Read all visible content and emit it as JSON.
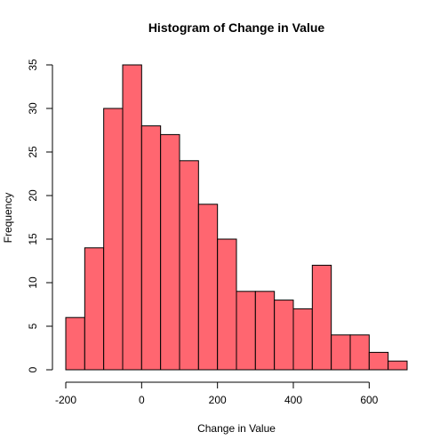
{
  "chart_data": {
    "type": "bar",
    "title": "Histogram of Change in Value",
    "xlabel": "Change in Value",
    "ylabel": "Frequency",
    "bin_edges": [
      -200,
      -150,
      -100,
      -50,
      0,
      50,
      100,
      150,
      200,
      250,
      300,
      350,
      400,
      450,
      500,
      550,
      600,
      650,
      700
    ],
    "values": [
      6,
      14,
      30,
      35,
      28,
      27,
      24,
      19,
      15,
      9,
      9,
      8,
      7,
      12,
      4,
      4,
      2,
      1
    ],
    "xlim": [
      -200,
      700
    ],
    "ylim": [
      0,
      35
    ],
    "x_ticks": [
      -200,
      0,
      200,
      400,
      600
    ],
    "y_ticks": [
      0,
      5,
      10,
      15,
      20,
      25,
      30,
      35
    ],
    "bar_color": "#ff6670",
    "grid": false
  }
}
